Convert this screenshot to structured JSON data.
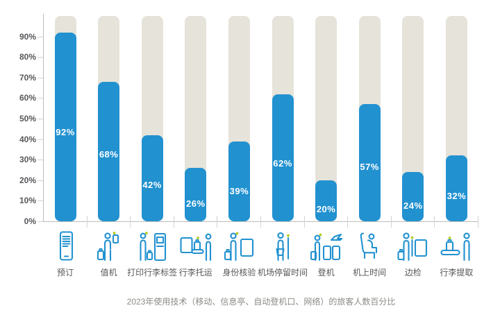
{
  "chart_data": {
    "type": "bar",
    "caption": "2023年使用技术（移动、信息亭、自动登机口、网络）的旅客人数百分比",
    "categories": [
      "预订",
      "值机",
      "打印行李标签",
      "行李托运",
      "身份核验",
      "机场停留时间",
      "登机",
      "机上时间",
      "边检",
      "行李提取"
    ],
    "values": [
      92,
      68,
      42,
      26,
      39,
      62,
      20,
      57,
      24,
      32
    ],
    "value_labels": [
      "92%",
      "68%",
      "42%",
      "26%",
      "39%",
      "62%",
      "20%",
      "57%",
      "24%",
      "32%"
    ],
    "icons": [
      "smartphone-booking-icon",
      "passenger-phone-checkin-icon",
      "kiosk-bagtag-icon",
      "bag-drop-icon",
      "id-verification-gate-icon",
      "dwell-time-pole-icon",
      "boarding-gate-plane-icon",
      "onboard-seat-icon",
      "border-control-gate-icon",
      "baggage-claim-icon"
    ],
    "y_ticks": [
      "0%",
      "10%",
      "20%",
      "30%",
      "40%",
      "50%",
      "60%",
      "70%",
      "80%",
      "90%"
    ],
    "ylim": [
      0,
      100
    ],
    "track_full_value": 100,
    "grid": false,
    "legend": false,
    "colors": {
      "bar_blue": "#2191d0",
      "track_gray": "#e5e3da",
      "accent_green": "#b2cb1c",
      "axis_gray": "#bcbcb8",
      "tick_gray": "#d4d3ce",
      "tick_label": "#57585b",
      "category_label": "#55565a",
      "value_label": "#ffffff",
      "caption_gray": "#8b8b85"
    }
  }
}
